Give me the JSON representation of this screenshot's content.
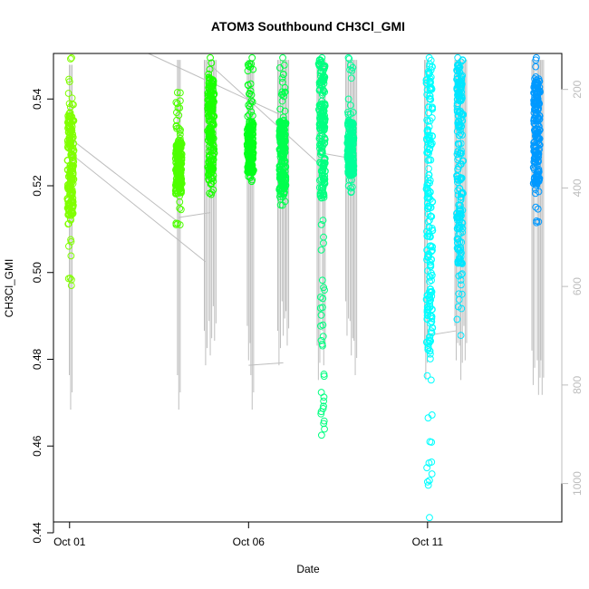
{
  "chart_data": {
    "type": "scatter",
    "title": "ATOM3 Southbound CH3Cl_GMI",
    "xlabel": "Date",
    "ylabel": "CH3Cl_GMI",
    "x_ticks": [
      "Oct 01",
      "Oct 06",
      "Oct 11"
    ],
    "x_tick_days": [
      1,
      6,
      11
    ],
    "xlim": [
      0.55,
      14.75
    ],
    "ylim": [
      0.4425,
      0.5505
    ],
    "y_ticks": [
      0.44,
      0.46,
      0.48,
      0.5,
      0.52,
      0.54
    ],
    "y_tick_labels": [
      "0.44",
      "0.46",
      "0.48",
      "0.50",
      "0.52",
      "0.54"
    ],
    "right_axis": {
      "label": "",
      "ticks": [
        200,
        400,
        600,
        800,
        1000
      ],
      "tick_labels": [
        "200",
        "400",
        "600",
        "800",
        "1000"
      ],
      "lim": [
        1078,
        127
      ],
      "color": "#bdbdbd"
    },
    "altitude_trace_color": "#bebebe",
    "grid": false,
    "legend": "none",
    "marker": "open-circle",
    "series": [
      {
        "day": 1.03,
        "y_min": 0.497,
        "y_max": 0.5495,
        "y_dense_min": 0.513,
        "y_dense_max": 0.537,
        "color": "#80ff00"
      },
      {
        "day": 4.05,
        "y_min": 0.511,
        "y_max": 0.5415,
        "y_dense_min": 0.518,
        "y_dense_max": 0.53,
        "color": "#4dff00"
      },
      {
        "day": 4.95,
        "y_min": 0.518,
        "y_max": 0.5495,
        "y_dense_min": 0.521,
        "y_dense_max": 0.545,
        "color": "#1aff00"
      },
      {
        "day": 6.05,
        "y_min": 0.521,
        "y_max": 0.5495,
        "y_dense_min": 0.523,
        "y_dense_max": 0.535,
        "color": "#00ff1a"
      },
      {
        "day": 6.95,
        "y_min": 0.5155,
        "y_max": 0.5495,
        "y_dense_min": 0.518,
        "y_dense_max": 0.535,
        "color": "#00ff4d"
      },
      {
        "day": 8.05,
        "y_min": 0.4625,
        "y_max": 0.5495,
        "y_dense_min": 0.517,
        "y_dense_max": 0.549,
        "color": "#00ff80"
      },
      {
        "day": 8.85,
        "y_min": 0.5185,
        "y_max": 0.5495,
        "y_dense_min": 0.522,
        "y_dense_max": 0.535,
        "color": "#00ff99"
      },
      {
        "day": 11.05,
        "y_min": 0.4435,
        "y_max": 0.5495,
        "y_dense_min": 0.481,
        "y_dense_max": 0.549,
        "color": "#00ffff"
      },
      {
        "day": 11.9,
        "y_min": 0.4855,
        "y_max": 0.5495,
        "y_dense_min": 0.502,
        "y_dense_max": 0.549,
        "color": "#00e6ff"
      },
      {
        "day": 14.05,
        "y_min": 0.5115,
        "y_max": 0.5495,
        "y_dense_min": 0.52,
        "y_dense_max": 0.545,
        "color": "#0099ff"
      }
    ],
    "altitude_profiles": [
      {
        "day": 1.03,
        "alt_min": 150,
        "alt_max": 850
      },
      {
        "day": 4.05,
        "alt_min": 140,
        "alt_max": 850
      },
      {
        "day": 4.8,
        "alt_min": 140,
        "alt_max": 760
      },
      {
        "day": 4.93,
        "alt_min": 140,
        "alt_max": 740
      },
      {
        "day": 5.05,
        "alt_min": 140,
        "alt_max": 710
      },
      {
        "day": 6.0,
        "alt_min": 140,
        "alt_max": 750
      },
      {
        "day": 6.1,
        "alt_min": 140,
        "alt_max": 850
      },
      {
        "day": 6.85,
        "alt_min": 140,
        "alt_max": 760
      },
      {
        "day": 6.97,
        "alt_min": 140,
        "alt_max": 700
      },
      {
        "day": 7.08,
        "alt_min": 140,
        "alt_max": 720
      },
      {
        "day": 7.95,
        "alt_min": 140,
        "alt_max": 790
      },
      {
        "day": 8.1,
        "alt_min": 140,
        "alt_max": 760
      },
      {
        "day": 8.75,
        "alt_min": 140,
        "alt_max": 700
      },
      {
        "day": 8.87,
        "alt_min": 140,
        "alt_max": 740
      },
      {
        "day": 8.98,
        "alt_min": 140,
        "alt_max": 780
      },
      {
        "day": 10.95,
        "alt_min": 140,
        "alt_max": 790
      },
      {
        "day": 11.8,
        "alt_min": 140,
        "alt_max": 750
      },
      {
        "day": 11.93,
        "alt_min": 140,
        "alt_max": 790
      },
      {
        "day": 12.05,
        "alt_min": 140,
        "alt_max": 750
      },
      {
        "day": 13.95,
        "alt_min": 140,
        "alt_max": 800
      },
      {
        "day": 14.1,
        "alt_min": 140,
        "alt_max": 820
      },
      {
        "day": 14.2,
        "alt_min": 140,
        "alt_max": 820
      }
    ],
    "altitude_connectors": [
      {
        "day1": 1.03,
        "alt1": 300,
        "day2": 4.05,
        "alt2": 470
      },
      {
        "day1": 1.03,
        "alt1": 330,
        "day2": 4.8,
        "alt2": 550
      },
      {
        "day1": 4.05,
        "alt1": 460,
        "day2": 4.93,
        "alt2": 450
      },
      {
        "day1": 3.2,
        "alt1": 127,
        "day2": 6.85,
        "alt2": 250
      },
      {
        "day1": 4.93,
        "alt1": 150,
        "day2": 7.95,
        "alt2": 350
      },
      {
        "day1": 6.0,
        "alt1": 760,
        "day2": 6.97,
        "alt2": 755
      },
      {
        "day1": 8.1,
        "alt1": 330,
        "day2": 8.87,
        "alt2": 340
      },
      {
        "day1": 10.95,
        "alt1": 700,
        "day2": 11.8,
        "alt2": 690
      }
    ]
  }
}
